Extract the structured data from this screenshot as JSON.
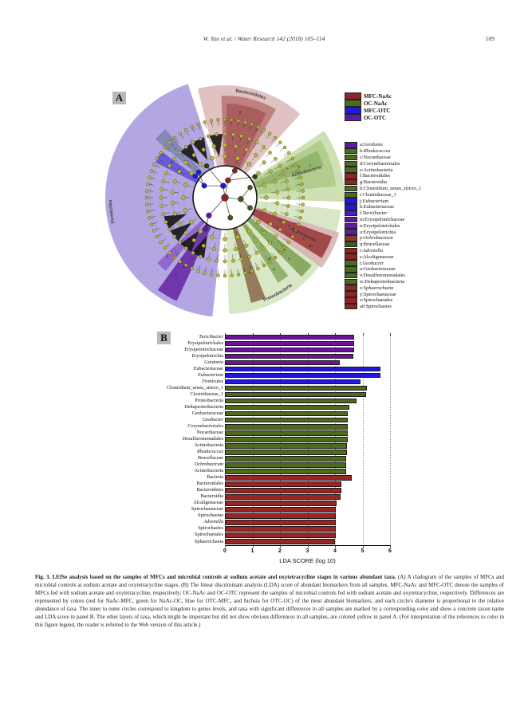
{
  "page": {
    "header_center": "W. Yan et al. / Water Research 142 (2018) 105–114",
    "header_page": "109"
  },
  "figure": {
    "panel_a_label": "A",
    "panel_b_label": "B",
    "group_legend": [
      {
        "label": "MFC-NaAc",
        "color": "#8e2424"
      },
      {
        "label": "OC-NaAc",
        "color": "#4d6a1f"
      },
      {
        "label": "MFC-OTC",
        "color": "#2316e0"
      },
      {
        "label": "OC-OTC",
        "color": "#5e1c9e"
      }
    ],
    "taxa_legend": [
      {
        "key": "a",
        "name": "Gordonia",
        "italic": true,
        "color": "#5e1c9e"
      },
      {
        "key": "b",
        "name": "Rhodococcus",
        "italic": true,
        "color": "#4d6a1f"
      },
      {
        "key": "c",
        "name": "Nocardiaceae",
        "italic": false,
        "color": "#4d6a1f"
      },
      {
        "key": "d",
        "name": "Corynebacteriales",
        "italic": false,
        "color": "#4d6a1f"
      },
      {
        "key": "e",
        "name": "Actinobacteria",
        "italic": false,
        "color": "#4d6a1f"
      },
      {
        "key": "f",
        "name": "Bacteroidales",
        "italic": false,
        "color": "#8e2424"
      },
      {
        "key": "g",
        "name": "Bacteroidia",
        "italic": false,
        "color": "#8e2424"
      },
      {
        "key": "h",
        "name": "Clostridium_sensu_stricto_1",
        "italic": false,
        "color": "#4d6a1f"
      },
      {
        "key": "i",
        "name": "Clostridiaceae_1",
        "italic": false,
        "color": "#4d6a1f"
      },
      {
        "key": "j",
        "name": "Eubacterium",
        "italic": true,
        "color": "#2316e0"
      },
      {
        "key": "k",
        "name": "Eubacteriaceae",
        "italic": false,
        "color": "#2316e0"
      },
      {
        "key": "l",
        "name": "Turicibacter",
        "italic": true,
        "color": "#4a1ec2"
      },
      {
        "key": "m",
        "name": "Erysipelotrichaceae",
        "italic": false,
        "color": "#5e1c9e"
      },
      {
        "key": "n",
        "name": "Erysipelotrichales",
        "italic": false,
        "color": "#5e1c9e"
      },
      {
        "key": "o",
        "name": "Erysipelotrichia",
        "italic": false,
        "color": "#5e1c9e"
      },
      {
        "key": "p",
        "name": "Ochrobactrum",
        "italic": true,
        "color": "#8a3b28"
      },
      {
        "key": "q",
        "name": "Brucellaceae",
        "italic": false,
        "color": "#3f5a1a"
      },
      {
        "key": "r",
        "name": "Advenella",
        "italic": true,
        "color": "#8e2424"
      },
      {
        "key": "s",
        "name": "Alcaligenaceae",
        "italic": false,
        "color": "#8e2424"
      },
      {
        "key": "t",
        "name": "Geobacter",
        "italic": true,
        "color": "#4d6a1f"
      },
      {
        "key": "u",
        "name": "Geobacteraceae",
        "italic": false,
        "color": "#4d6a1f"
      },
      {
        "key": "v",
        "name": "Desulfuromonadales",
        "italic": false,
        "color": "#4d6a1f"
      },
      {
        "key": "w",
        "name": "Deltaproteobacteria",
        "italic": false,
        "color": "#4d6a1f"
      },
      {
        "key": "x",
        "name": "Sphaerochaeta",
        "italic": true,
        "color": "#8e2424"
      },
      {
        "key": "y",
        "name": "Spirochaetaceae",
        "italic": false,
        "color": "#8e2424"
      },
      {
        "key": "z",
        "name": "Spirochaetales",
        "italic": false,
        "color": "#8e2424"
      },
      {
        "key": "a0",
        "name": "Spirochaetes",
        "italic": false,
        "color": "#8e2424"
      }
    ],
    "cladogram": {
      "sectors": [
        {
          "name": "Firmicutes",
          "a1": 186,
          "a2": 342,
          "r1": 40,
          "r2": 150,
          "fill": "#b3a6e2",
          "op": 1
        },
        {
          "name": "Bacteroidetes-outer",
          "a1": 346,
          "a2": 402,
          "r1": 40,
          "r2": 141,
          "fill": "#e0c2c2",
          "op": 1
        },
        {
          "name": "Bacteroidetes-mid",
          "a1": 358,
          "a2": 390,
          "r1": 40,
          "r2": 128,
          "fill": "#c08080",
          "op": 1
        },
        {
          "name": "Bacteroidetes-core",
          "a1": 361,
          "a2": 386,
          "r1": 40,
          "r2": 118,
          "fill": "#aa5f5f",
          "op": 1
        },
        {
          "name": "Actinobacteria-outer",
          "a1": 56,
          "a2": 92,
          "r1": 40,
          "r2": 150,
          "fill": "#cfe0b4",
          "op": 1
        },
        {
          "name": "Actinobacteria-mid",
          "a1": 59,
          "a2": 84,
          "r1": 40,
          "r2": 140,
          "fill": "#b3cd8e",
          "op": 1
        },
        {
          "name": "Actinobacteria-core",
          "a1": 63,
          "a2": 72,
          "r1": 40,
          "r2": 130,
          "fill": "#95b56d",
          "op": 1
        },
        {
          "name": "Proteobacteria",
          "a1": 96,
          "a2": 178,
          "r1": 40,
          "r2": 146,
          "fill": "#d8e8c6",
          "op": 1
        },
        {
          "name": "Spirochaetae-halo",
          "a1": 107,
          "a2": 126,
          "r1": 40,
          "r2": 150,
          "fill": "#d8b4b4",
          "op": 0.9
        },
        {
          "name": "Spirochaetae",
          "a1": 110,
          "a2": 122,
          "r1": 40,
          "r2": 143,
          "fill": "#a34848",
          "op": 1
        },
        {
          "name": "proteo-green-1",
          "a1": 128,
          "a2": 136,
          "r1": 40,
          "r2": 138,
          "fill": "#7fa355",
          "op": 0.9
        },
        {
          "name": "proteo-green-2",
          "a1": 141,
          "a2": 148,
          "r1": 40,
          "r2": 126,
          "fill": "#86a95e",
          "op": 0.85
        },
        {
          "name": "proteo-brown",
          "a1": 158,
          "a2": 166,
          "r1": 40,
          "r2": 136,
          "fill": "#8f6f4f",
          "op": 0.9
        },
        {
          "name": "firm-purple-1",
          "a1": 205,
          "a2": 216,
          "r1": 40,
          "r2": 143,
          "fill": "#5f1ca0",
          "op": 0.8
        },
        {
          "name": "firm-purple-2",
          "a1": 219,
          "a2": 226,
          "r1": 40,
          "r2": 118,
          "fill": "#7b3fbf",
          "op": 0.6
        },
        {
          "name": "firm-blue",
          "a1": 297,
          "a2": 306,
          "r1": 40,
          "r2": 98,
          "fill": "#2d1fd0",
          "op": 0.55
        },
        {
          "name": "firm-slate",
          "a1": 310,
          "a2": 319,
          "r1": 40,
          "r2": 114,
          "fill": "#7881aa",
          "op": 0.8
        }
      ],
      "ring_labels": [
        {
          "text": "Bacteroidetes",
          "type": "arc-cw",
          "a1": -6,
          "a2": 34,
          "r": 133
        },
        {
          "text": "Actinobacteria",
          "type": "radial",
          "a": 73,
          "r": 88
        },
        {
          "text": "Spirochaetae",
          "type": "radial",
          "a": 116,
          "r": 92
        },
        {
          "text": "Proteobacteria",
          "type": "arc-ccw",
          "a1": 170,
          "a2": 132,
          "r": 139
        },
        {
          "text": "Firmicutes",
          "type": "arc-cw",
          "a1": 248,
          "a2": 278,
          "r": 142
        }
      ],
      "letters": [
        {
          "t": "g",
          "a": 370,
          "r": 108
        },
        {
          "t": "f",
          "a": 366,
          "r": 96
        },
        {
          "t": "e",
          "a": 66,
          "r": 86
        },
        {
          "t": "d",
          "a": 68,
          "r": 100
        },
        {
          "t": "c",
          "a": 70,
          "r": 114
        },
        {
          "t": "x",
          "a": 114,
          "r": 88
        },
        {
          "t": "y",
          "a": 116,
          "r": 100
        },
        {
          "t": "z",
          "a": 118,
          "r": 112
        },
        {
          "t": "a0",
          "a": 120,
          "r": 124
        },
        {
          "t": "t",
          "a": 130,
          "r": 88
        },
        {
          "t": "u",
          "a": 132,
          "r": 100
        },
        {
          "t": "v",
          "a": 134,
          "r": 112
        },
        {
          "t": "w",
          "a": 144,
          "r": 96
        },
        {
          "t": "q",
          "a": 146,
          "r": 110
        },
        {
          "t": "p",
          "a": 162,
          "r": 100
        },
        {
          "t": "a",
          "a": 208,
          "r": 88
        },
        {
          "t": "m",
          "a": 210,
          "r": 102
        },
        {
          "t": "n",
          "a": 212,
          "r": 116
        },
        {
          "t": "o",
          "a": 214,
          "r": 128
        },
        {
          "t": "h",
          "a": 332,
          "r": 70
        },
        {
          "t": "i",
          "a": 329,
          "r": 82
        },
        {
          "t": "j",
          "a": 301,
          "r": 68
        },
        {
          "t": "k",
          "a": 303,
          "r": 80
        },
        {
          "t": "l",
          "a": 314,
          "r": 86
        },
        {
          "t": "r",
          "a": 222,
          "r": 92
        },
        {
          "t": "s",
          "a": 224,
          "r": 104
        }
      ],
      "nodes": [
        {
          "a": 0,
          "r": 0,
          "c": "#8b2323",
          "s": 4.5
        },
        {
          "a": 352,
          "r": 15,
          "c": "#2316e0",
          "s": 3.5
        },
        {
          "a": 300,
          "r": 30,
          "c": "#2316e0",
          "s": 3.2
        },
        {
          "a": 306,
          "r": 46,
          "c": "#2316e0",
          "s": 3.0
        },
        {
          "a": 314,
          "r": 46,
          "c": "#2316e0",
          "s": 3.0
        },
        {
          "a": 10,
          "r": 22,
          "c": "#8b2323",
          "s": 3.5
        },
        {
          "a": 20,
          "r": 36,
          "c": "#8b2323",
          "s": 3.2
        },
        {
          "a": 95,
          "r": 20,
          "c": "#3f5a1a",
          "s": 3.5
        },
        {
          "a": 112,
          "r": 34,
          "c": "#3f5a1a",
          "s": 3.2
        },
        {
          "a": 68,
          "r": 34,
          "c": "#3f5a1a",
          "s": 3.0
        },
        {
          "a": 165,
          "r": 26,
          "c": "#3f5a1a",
          "s": 3.2
        },
        {
          "a": 222,
          "r": 30,
          "c": "#5f1ca0",
          "s": 3.4
        },
        {
          "a": 212,
          "r": 46,
          "c": "#5f1ca0",
          "s": 3.0
        },
        {
          "a": 330,
          "r": 46,
          "c": "#2c3e12",
          "s": 3.0
        },
        {
          "a": 55,
          "r": 46,
          "c": "#2c3e12",
          "s": 3.0
        }
      ],
      "edges": [
        [
          0,
          1
        ],
        [
          1,
          2
        ],
        [
          2,
          3
        ],
        [
          2,
          4
        ],
        [
          0,
          5
        ],
        [
          5,
          6
        ],
        [
          0,
          7
        ],
        [
          7,
          8
        ],
        [
          7,
          9
        ],
        [
          0,
          10
        ],
        [
          0,
          11
        ],
        [
          11,
          12
        ],
        [
          1,
          13
        ],
        [
          5,
          14
        ]
      ],
      "fans": [
        205,
        218,
        233,
        247,
        322,
        335,
        352
      ],
      "node_color": "#b8bc3e",
      "node_stroke": "#3a3a00"
    }
  },
  "chart_data": {
    "type": "bar",
    "orientation": "horizontal",
    "title": "",
    "xlabel": "LDA SCORE (log 10)",
    "ylabel": "",
    "xlim": [
      0,
      6
    ],
    "xticks": [
      0,
      1,
      2,
      3,
      4,
      5,
      6
    ],
    "grid": "dotted-vertical",
    "group_colors": {
      "MFC-NaAc": "#992525",
      "OC-NaAc": "#4d6a1f",
      "MFC-OTC": "#2316e0",
      "OC-OTC": "#6e119e"
    },
    "bars": [
      {
        "taxon": "Turicibacter",
        "group": "OC-OTC",
        "lda": 4.7,
        "italic": true
      },
      {
        "taxon": "Erysipelotrichales",
        "group": "OC-OTC",
        "lda": 4.7,
        "italic": false
      },
      {
        "taxon": "Erysipelotrichaceae",
        "group": "OC-OTC",
        "lda": 4.69,
        "italic": false
      },
      {
        "taxon": "Erysipelotrichia",
        "group": "OC-OTC",
        "lda": 4.68,
        "italic": false
      },
      {
        "taxon": "Gordonia",
        "group": "OC-OTC",
        "lda": 4.17,
        "italic": true
      },
      {
        "taxon": "Eubacteriaceae",
        "group": "MFC-OTC",
        "lda": 5.65,
        "italic": false
      },
      {
        "taxon": "Eubacterium",
        "group": "MFC-OTC",
        "lda": 5.64,
        "italic": true
      },
      {
        "taxon": "Firmicutes",
        "group": "MFC-OTC",
        "lda": 4.94,
        "italic": false
      },
      {
        "taxon": "Clostridium_sensu_stricto_1",
        "group": "OC-NaAc",
        "lda": 5.15,
        "italic": false
      },
      {
        "taxon": "Clostridiaceae_1",
        "group": "OC-NaAc",
        "lda": 5.14,
        "italic": false
      },
      {
        "taxon": "Proteobacteria",
        "group": "OC-NaAc",
        "lda": 4.79,
        "italic": false
      },
      {
        "taxon": "Deltaproteobacteria",
        "group": "OC-NaAc",
        "lda": 4.53,
        "italic": false
      },
      {
        "taxon": "Geobacteraceae",
        "group": "OC-NaAc",
        "lda": 4.47,
        "italic": false
      },
      {
        "taxon": "Geobacter",
        "group": "OC-NaAc",
        "lda": 4.46,
        "italic": true
      },
      {
        "taxon": "Corynebacteriales",
        "group": "OC-NaAc",
        "lda": 4.46,
        "italic": false
      },
      {
        "taxon": "Nocardiaceae",
        "group": "OC-NaAc",
        "lda": 4.46,
        "italic": false
      },
      {
        "taxon": "Desulfuromonadales",
        "group": "OC-NaAc",
        "lda": 4.45,
        "italic": false
      },
      {
        "taxon": "Actinobacteria",
        "group": "OC-NaAc",
        "lda": 4.43,
        "italic": false
      },
      {
        "taxon": "Rhodococcus",
        "group": "OC-NaAc",
        "lda": 4.43,
        "italic": true
      },
      {
        "taxon": "Brucellaceae",
        "group": "OC-NaAc",
        "lda": 4.42,
        "italic": false
      },
      {
        "taxon": "Ochrobactrum",
        "group": "OC-NaAc",
        "lda": 4.4,
        "italic": true
      },
      {
        "taxon": "Actinobacteria",
        "group": "OC-NaAc",
        "lda": 4.4,
        "italic": false
      },
      {
        "taxon": "Bacteria",
        "group": "MFC-NaAc",
        "lda": 4.6,
        "italic": false
      },
      {
        "taxon": "Bacteroidales",
        "group": "MFC-NaAc",
        "lda": 4.23,
        "italic": false
      },
      {
        "taxon": "Bacteroidetes",
        "group": "MFC-NaAc",
        "lda": 4.23,
        "italic": false
      },
      {
        "taxon": "Bacteroidia",
        "group": "MFC-NaAc",
        "lda": 4.2,
        "italic": false
      },
      {
        "taxon": "Alcaligenaceae",
        "group": "MFC-NaAc",
        "lda": 4.07,
        "italic": false
      },
      {
        "taxon": "Spirochaetaceae",
        "group": "MFC-NaAc",
        "lda": 4.03,
        "italic": false
      },
      {
        "taxon": "Spirochaetae",
        "group": "MFC-NaAc",
        "lda": 4.03,
        "italic": false
      },
      {
        "taxon": "Advenella",
        "group": "MFC-NaAc",
        "lda": 4.03,
        "italic": true
      },
      {
        "taxon": "Spirochaetes",
        "group": "MFC-NaAc",
        "lda": 4.02,
        "italic": false
      },
      {
        "taxon": "Spirochaetales",
        "group": "MFC-NaAc",
        "lda": 4.02,
        "italic": false
      },
      {
        "taxon": "Sphaerochaeta",
        "group": "MFC-NaAc",
        "lda": 3.99,
        "italic": false
      }
    ]
  },
  "caption": {
    "bold": "Fig. 3. LEfSe analysis based on the samples of MFCs and microbial controls at sodium acetate and oxytetracycline stages in various abundant taxa.",
    "text": " (A) A cladogram of the samples of MFCs and microbial controls at sodium acetate and oxytetracycline stages. (B) The linear discriminant analysis (LDA) score of abundant biomarkers from all samples. MFC-NaAc and MFC-OTC denote the samples of MFCs fed with sodium acetate and oxytetracycline, respectively; OC-NaAc and OC-OTC represent the samples of microbial controls fed with sodium acetate and oxytetracycline, respectively. Differences are represented by colors (red for NaAc-MFC, green for NaAc-OC, blue for OTC-MFC, and fuchsia for OTC-OC) of the most abundant biomarkers, and each circle's diameter is proportional to the relative abundance of taxa. The inner to outer circles correspond to kingdom to genus levels, and taxa with significant differences in all samples are marked by a corresponding color and show a concrete taxon name and LDA score in panel B. The other layers of taxa, which might be important but did not show obvious differences in all samples, are colored yellow in panel A. (For interpretation of the references to color in this figure legend, the reader is referred to the Web version of this article.)"
  }
}
